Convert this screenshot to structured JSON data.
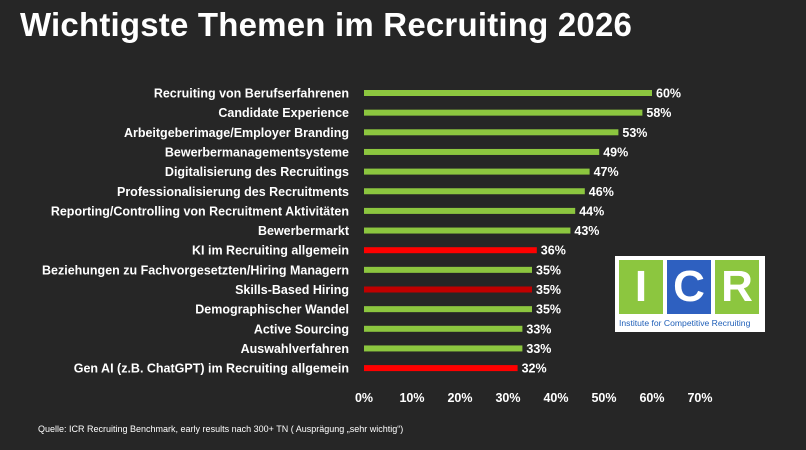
{
  "chart_data": {
    "type": "bar",
    "orientation": "horizontal",
    "title": "Wichtigste Themen im Recruiting 2026",
    "categories": [
      "Recruiting von Berufserfahrenen",
      "Candidate Experience",
      "Arbeitgeberimage/Employer Branding",
      "Bewerbermanagementsysteme",
      "Digitalisierung des Recruitings",
      "Professionalisierung des Recruitments",
      "Reporting/Controlling von Recruitment Aktivitäten",
      "Bewerbermarkt",
      "KI im Recruiting allgemein",
      "Beziehungen zu Fachvorgesetzten/Hiring Managern",
      "Skills-Based Hiring",
      "Demographischer Wandel",
      "Active Sourcing",
      "Auswahlverfahren",
      "Gen AI (z.B. ChatGPT) im Recruiting allgemein"
    ],
    "values": [
      60,
      58,
      53,
      49,
      47,
      46,
      44,
      43,
      36,
      35,
      35,
      35,
      33,
      33,
      32
    ],
    "value_labels": [
      "60%",
      "58%",
      "53%",
      "49%",
      "47%",
      "46%",
      "44%",
      "43%",
      "36%",
      "35%",
      "35%",
      "35%",
      "33%",
      "33%",
      "32%"
    ],
    "bar_colors": [
      "#8cc63f",
      "#8cc63f",
      "#8cc63f",
      "#8cc63f",
      "#8cc63f",
      "#8cc63f",
      "#8cc63f",
      "#8cc63f",
      "#ff0000",
      "#8cc63f",
      "#c00000",
      "#8cc63f",
      "#8cc63f",
      "#8cc63f",
      "#ff0000"
    ],
    "xlim": [
      0,
      70
    ],
    "x_ticks": [
      0,
      10,
      20,
      30,
      40,
      50,
      60,
      70
    ],
    "x_tick_labels": [
      "0%",
      "10%",
      "20%",
      "30%",
      "40%",
      "50%",
      "60%",
      "70%"
    ],
    "grid": false,
    "legend": "none"
  },
  "source": "Quelle: ICR Recruiting Benchmark, early results nach 300+ TN ( Ausprägung „sehr wichtig“)",
  "logo": {
    "letters": [
      "I",
      "C",
      "R"
    ],
    "subtitle": "Institute for Competitive Recruiting"
  }
}
